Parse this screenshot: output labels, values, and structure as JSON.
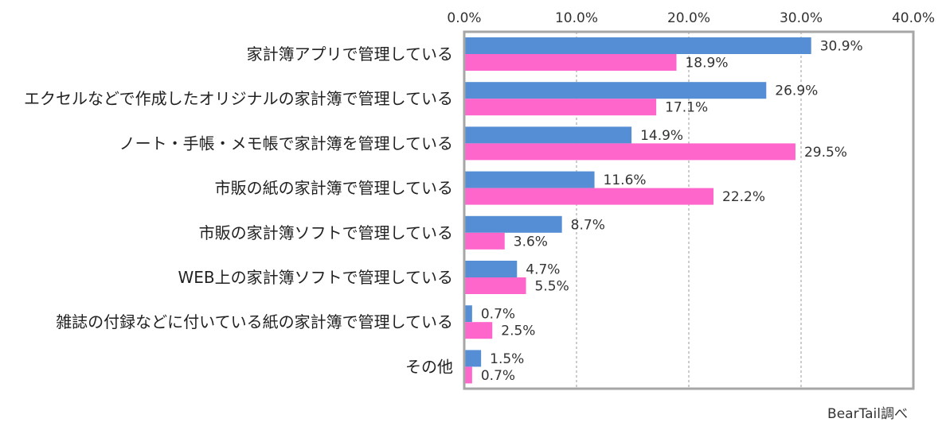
{
  "chart_data": {
    "type": "bar",
    "orientation": "horizontal",
    "categories": [
      "家計簿アプリで管理している",
      "エクセルなどで作成したオリジナルの家計簿で管理している",
      "ノート・手帳・メモ帳で家計簿を管理している",
      "市販の紙の家計簿で管理している",
      "市販の家計簿ソフトで管理している",
      "WEB上の家計簿ソフトで管理している",
      "雑誌の付録などに付いている紙の家計簿で管理している",
      "その他"
    ],
    "series": [
      {
        "values": [
          30.9,
          26.9,
          14.9,
          11.6,
          8.7,
          4.7,
          0.7,
          1.5
        ],
        "labels": [
          "30.9%",
          "26.9%",
          "14.9%",
          "11.6%",
          "8.7%",
          "4.7%",
          "0.7%",
          "1.5%"
        ],
        "color": "#558ed5"
      },
      {
        "values": [
          18.9,
          17.1,
          29.5,
          22.2,
          3.6,
          5.5,
          2.5,
          0.7
        ],
        "labels": [
          "18.9%",
          "17.1%",
          "29.5%",
          "22.2%",
          "3.6%",
          "5.5%",
          "2.5%",
          "0.7%"
        ],
        "color": "#ff66cc"
      }
    ],
    "xlim": [
      0,
      40
    ],
    "xticks": [
      0,
      10,
      20,
      30,
      40
    ],
    "xtick_labels": [
      "0.0%",
      "10.0%",
      "20.0%",
      "30.0%",
      "40.0%"
    ],
    "x_axis_position": "top",
    "grid": "vertical dashed",
    "legend": "none"
  },
  "source_note": "BearTail調べ"
}
